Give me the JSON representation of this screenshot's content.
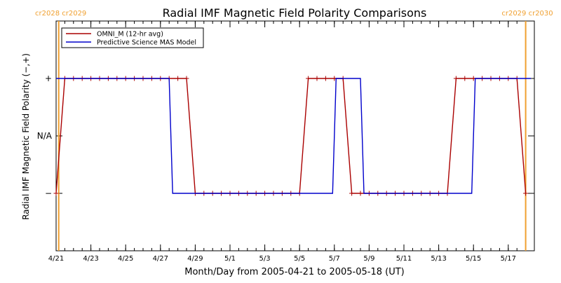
{
  "chart_data": {
    "type": "line",
    "title": "Radial IMF Magnetic Field Polarity Comparisons",
    "xlabel": "Month/Day from 2005-04-21 to 2005-05-18 (UT)",
    "ylabel": "Radial IMF Magnetic Field Polarity (−,+)",
    "x_range_days": [
      0,
      27.5
    ],
    "y_range": [
      -2,
      2
    ],
    "x_tick_labels": [
      {
        "day": 0,
        "label": "4/21"
      },
      {
        "day": 2,
        "label": "4/23"
      },
      {
        "day": 4,
        "label": "4/25"
      },
      {
        "day": 6,
        "label": "4/27"
      },
      {
        "day": 8,
        "label": "4/29"
      },
      {
        "day": 10,
        "label": "5/1"
      },
      {
        "day": 12,
        "label": "5/3"
      },
      {
        "day": 14,
        "label": "5/5"
      },
      {
        "day": 16,
        "label": "5/7"
      },
      {
        "day": 18,
        "label": "5/9"
      },
      {
        "day": 20,
        "label": "5/11"
      },
      {
        "day": 22,
        "label": "5/13"
      },
      {
        "day": 24,
        "label": "5/15"
      },
      {
        "day": 26,
        "label": "5/17"
      }
    ],
    "y_tick_labels": [
      {
        "value": 1,
        "label": "+"
      },
      {
        "value": 0,
        "label": "N/A"
      },
      {
        "value": -1,
        "label": "−"
      }
    ],
    "carrington_markers": [
      {
        "day": 0.15,
        "label": "cr2028 cr2029"
      },
      {
        "day": 27.0,
        "label": "cr2029 cr2030"
      }
    ],
    "legend": {
      "placement": "top-left",
      "entries": [
        {
          "name": "OMNI_M (12-hr avg)",
          "color": "#aa0000"
        },
        {
          "name": "Predictive Science MAS Model",
          "color": "#0000cc"
        }
      ]
    },
    "series": [
      {
        "name": "OMNI_M (12-hr avg)",
        "color": "#aa0000",
        "marker": "plus",
        "x": [
          0,
          0.5,
          1,
          1.5,
          2,
          2.5,
          3,
          3.5,
          4,
          4.5,
          5,
          5.5,
          6,
          6.5,
          7,
          7.5,
          8,
          8.5,
          9,
          9.5,
          10,
          10.5,
          11,
          11.5,
          12,
          12.5,
          13,
          13.5,
          14,
          14.5,
          15,
          15.5,
          16,
          16.5,
          17,
          17.5,
          18,
          18.5,
          19,
          19.5,
          20,
          20.5,
          21,
          21.5,
          22,
          22.5,
          23,
          23.5,
          24,
          24.5,
          25,
          25.5,
          26,
          26.5,
          27
        ],
        "values": [
          -1,
          1,
          1,
          1,
          1,
          1,
          1,
          1,
          1,
          1,
          1,
          1,
          1,
          1,
          1,
          1,
          -1,
          -1,
          -1,
          -1,
          -1,
          -1,
          -1,
          -1,
          -1,
          -1,
          -1,
          -1,
          -1,
          1,
          1,
          1,
          1,
          1,
          -1,
          -1,
          -1,
          -1,
          -1,
          -1,
          -1,
          -1,
          -1,
          -1,
          -1,
          -1,
          1,
          1,
          1,
          1,
          1,
          1,
          1,
          1,
          -1
        ]
      },
      {
        "name": "Predictive Science MAS Model",
        "color": "#0000cc",
        "marker": "none",
        "x": [
          0,
          6.5,
          6.7,
          15.9,
          16.1,
          17.5,
          17.7,
          23.9,
          24.1,
          27.3
        ],
        "values": [
          1,
          1,
          -1,
          -1,
          1,
          1,
          -1,
          -1,
          1,
          1
        ]
      }
    ]
  }
}
